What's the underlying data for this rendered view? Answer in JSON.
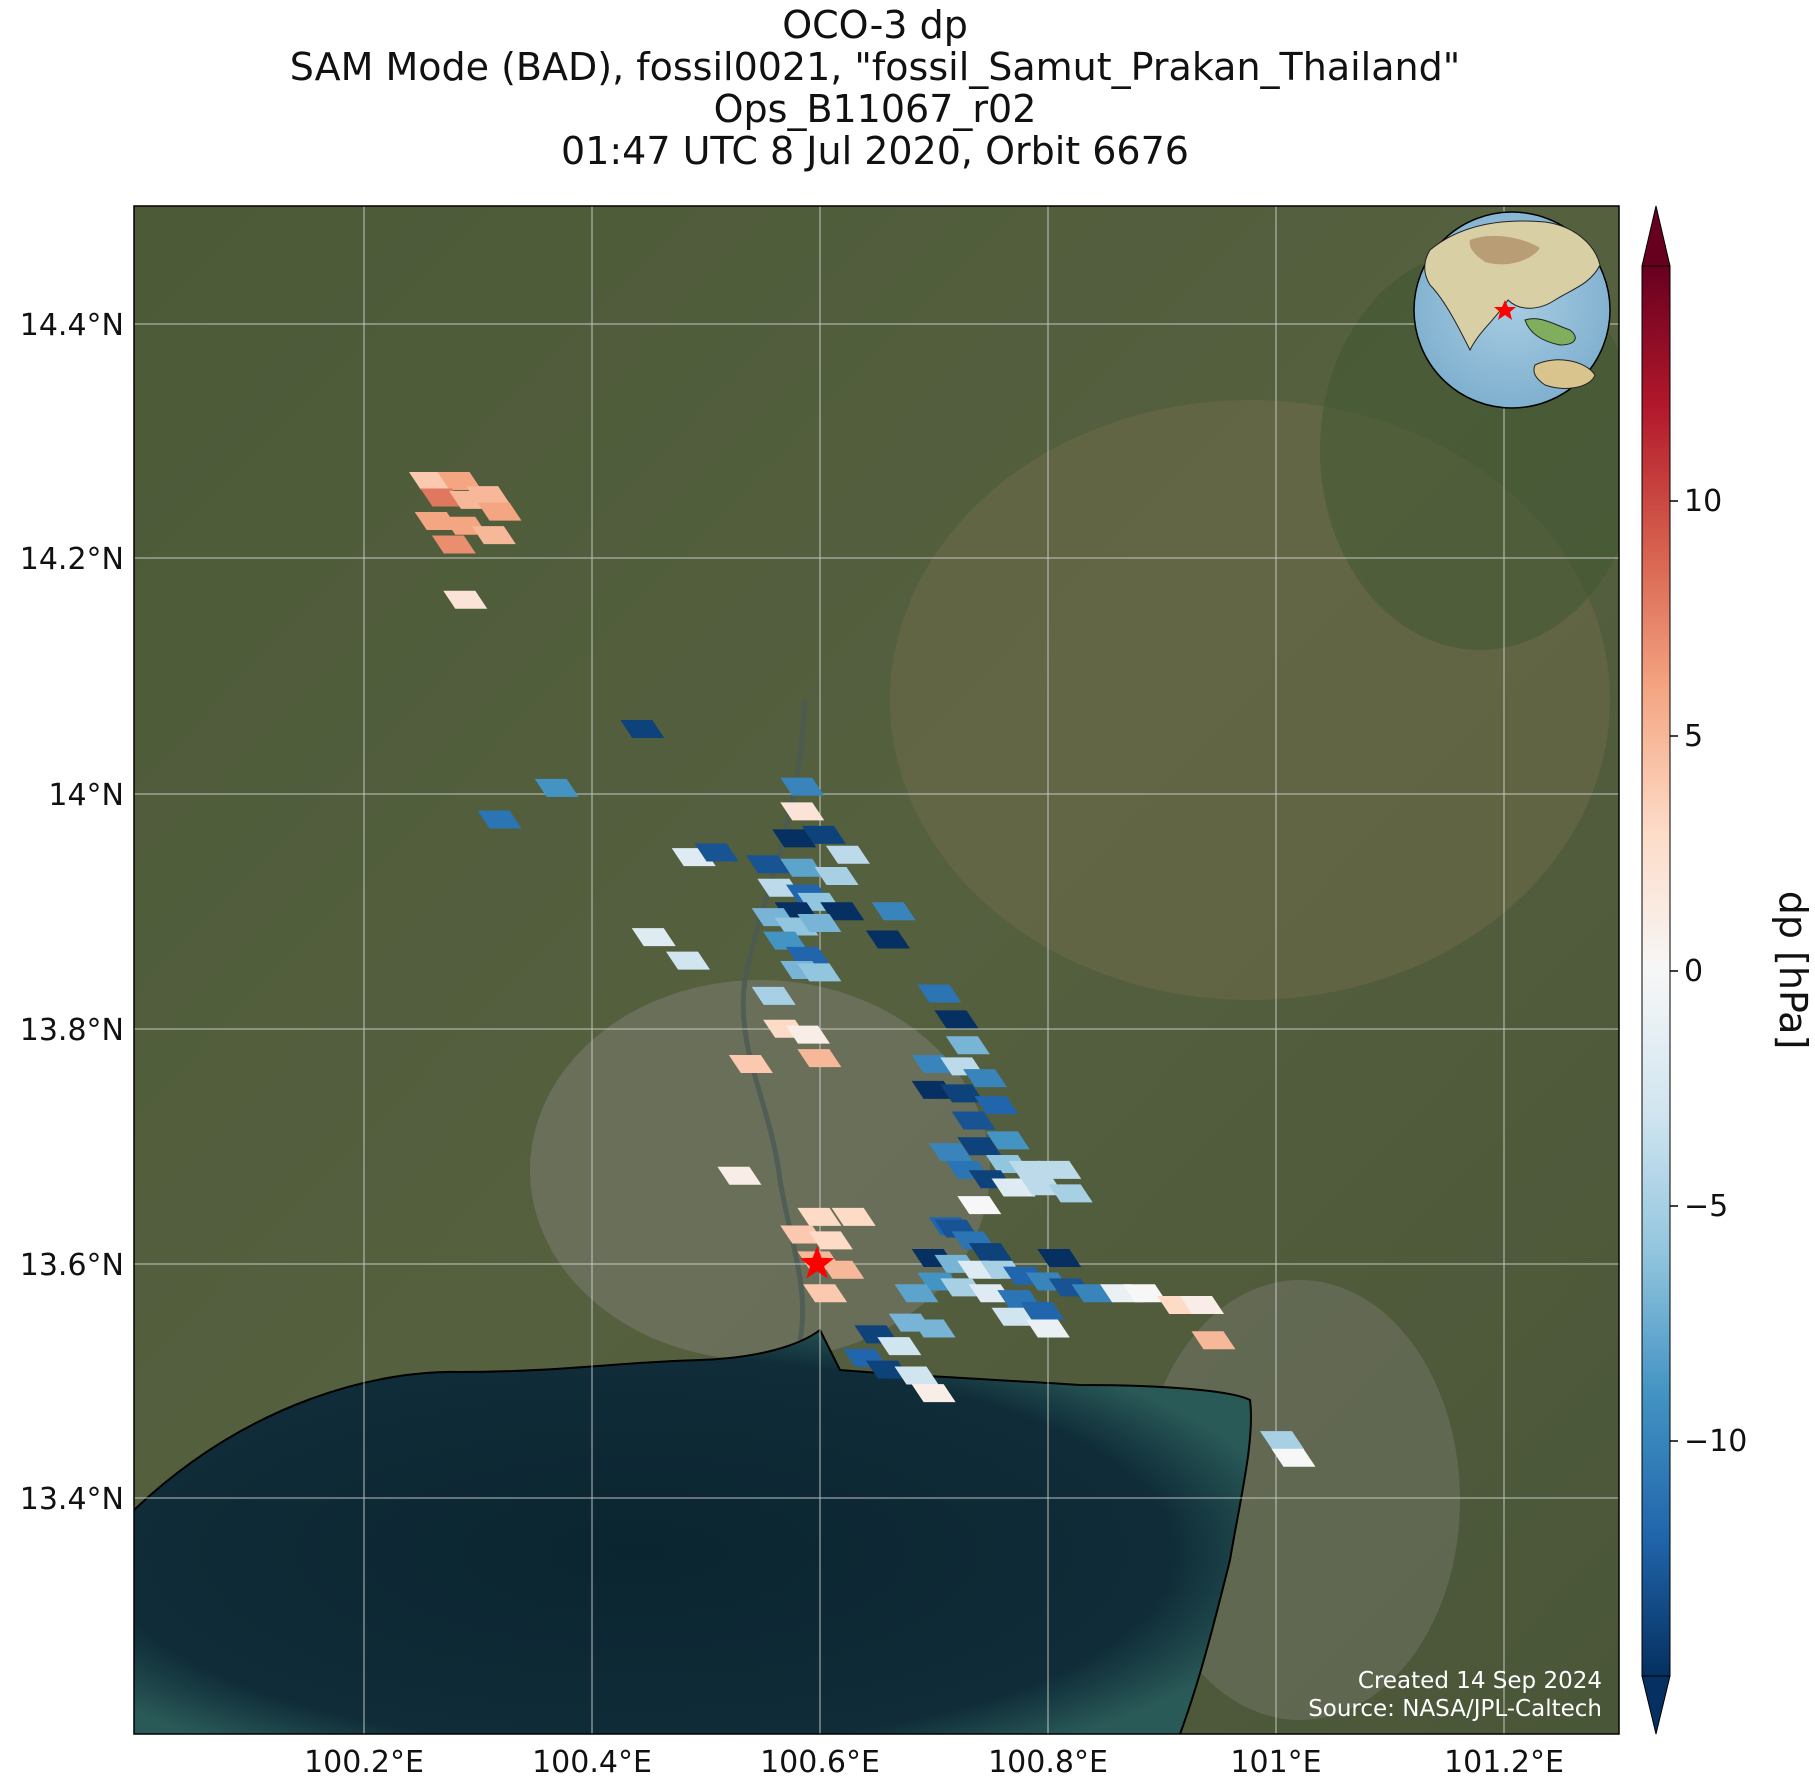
{
  "title": {
    "line1": "OCO-3 dp",
    "line2": "SAM Mode (BAD), fossil0021, \"fossil_Samut_Prakan_Thailand\"",
    "line3": "Ops_B11067_r02",
    "line4": "01:47 UTC 8 Jul 2020, Orbit 6676"
  },
  "credits": {
    "created": "Created 14 Sep 2024",
    "source": "Source: NASA/JPL-Caltech"
  },
  "colorbar": {
    "label": "dp [hPa]",
    "ticks": [
      "10",
      "5",
      "0",
      "−5",
      "−10"
    ],
    "tick_values": [
      10,
      5,
      0,
      -5,
      -10
    ],
    "vmin": -15,
    "vmax": 15,
    "colormap": "RdBu_r",
    "extend": "both"
  },
  "axes": {
    "lon_ticks": [
      "100.2°E",
      "100.4°E",
      "100.6°E",
      "100.8°E",
      "101°E",
      "101.2°E"
    ],
    "lon_values": [
      100.2,
      100.4,
      100.6,
      100.8,
      101.0,
      101.2
    ],
    "lat_ticks": [
      "14.4°N",
      "14.2°N",
      "14°N",
      "13.8°N",
      "13.6°N",
      "13.4°N"
    ],
    "lat_values": [
      14.4,
      14.2,
      14.0,
      13.8,
      13.6,
      13.4
    ],
    "lon_range": [
      100.0,
      101.3
    ],
    "lat_range": [
      13.2,
      14.5
    ],
    "grid": true
  },
  "target": {
    "name": "fossil_Samut_Prakan_Thailand",
    "lon": 100.598,
    "lat": 13.6,
    "marker": "red-star"
  },
  "inset_globe": {
    "marker": "red-star",
    "region": "Asia-Pacific"
  },
  "colors": {
    "sea": "#0e2a36",
    "land": "#4b5b3a",
    "gridline": "#d9d9d9",
    "star": "#ff0000"
  },
  "chart_data": {
    "type": "scatter",
    "variable": "dp",
    "units": "hPa",
    "points": [
      {
        "lon": 100.26,
        "lat": 14.266,
        "v": 4
      },
      {
        "lon": 100.285,
        "lat": 14.266,
        "v": 6
      },
      {
        "lon": 100.31,
        "lat": 14.254,
        "v": 5
      },
      {
        "lon": 100.27,
        "lat": 14.252,
        "v": 8
      },
      {
        "lon": 100.295,
        "lat": 14.25,
        "v": 5
      },
      {
        "lon": 100.32,
        "lat": 14.24,
        "v": 6
      },
      {
        "lon": 100.265,
        "lat": 14.232,
        "v": 6
      },
      {
        "lon": 100.29,
        "lat": 14.228,
        "v": 6
      },
      {
        "lon": 100.315,
        "lat": 14.22,
        "v": 5
      },
      {
        "lon": 100.28,
        "lat": 14.212,
        "v": 7
      },
      {
        "lon": 100.29,
        "lat": 14.165,
        "v": 2
      },
      {
        "lon": 100.445,
        "lat": 14.055,
        "v": -14
      },
      {
        "lon": 100.37,
        "lat": 14.005,
        "v": -9
      },
      {
        "lon": 100.32,
        "lat": 13.978,
        "v": -11
      },
      {
        "lon": 100.585,
        "lat": 14.006,
        "v": -10
      },
      {
        "lon": 100.585,
        "lat": 13.985,
        "v": 2
      },
      {
        "lon": 100.578,
        "lat": 13.962,
        "v": -15
      },
      {
        "lon": 100.604,
        "lat": 13.965,
        "v": -14
      },
      {
        "lon": 100.625,
        "lat": 13.948,
        "v": -4
      },
      {
        "lon": 100.49,
        "lat": 13.946,
        "v": -2
      },
      {
        "lon": 100.51,
        "lat": 13.95,
        "v": -13
      },
      {
        "lon": 100.555,
        "lat": 13.94,
        "v": -13
      },
      {
        "lon": 100.585,
        "lat": 13.937,
        "v": -8
      },
      {
        "lon": 100.615,
        "lat": 13.93,
        "v": -5
      },
      {
        "lon": 100.565,
        "lat": 13.92,
        "v": -4
      },
      {
        "lon": 100.59,
        "lat": 13.915,
        "v": -12
      },
      {
        "lon": 100.6,
        "lat": 13.908,
        "v": -6
      },
      {
        "lon": 100.62,
        "lat": 13.9,
        "v": -15
      },
      {
        "lon": 100.58,
        "lat": 13.9,
        "v": -15
      },
      {
        "lon": 100.56,
        "lat": 13.895,
        "v": -7
      },
      {
        "lon": 100.58,
        "lat": 13.887,
        "v": -6
      },
      {
        "lon": 100.6,
        "lat": 13.89,
        "v": -7
      },
      {
        "lon": 100.57,
        "lat": 13.875,
        "v": -9
      },
      {
        "lon": 100.59,
        "lat": 13.862,
        "v": -12
      },
      {
        "lon": 100.455,
        "lat": 13.878,
        "v": -2
      },
      {
        "lon": 100.485,
        "lat": 13.858,
        "v": -3
      },
      {
        "lon": 100.585,
        "lat": 13.85,
        "v": -7
      },
      {
        "lon": 100.6,
        "lat": 13.848,
        "v": -6
      },
      {
        "lon": 100.56,
        "lat": 13.828,
        "v": -5
      },
      {
        "lon": 100.57,
        "lat": 13.8,
        "v": 3
      },
      {
        "lon": 100.59,
        "lat": 13.795,
        "v": 1
      },
      {
        "lon": 100.6,
        "lat": 13.775,
        "v": 5
      },
      {
        "lon": 100.665,
        "lat": 13.9,
        "v": -10
      },
      {
        "lon": 100.66,
        "lat": 13.876,
        "v": -15
      },
      {
        "lon": 100.705,
        "lat": 13.83,
        "v": -11
      },
      {
        "lon": 100.72,
        "lat": 13.808,
        "v": -15
      },
      {
        "lon": 100.73,
        "lat": 13.786,
        "v": -7
      },
      {
        "lon": 100.7,
        "lat": 13.77,
        "v": -10
      },
      {
        "lon": 100.725,
        "lat": 13.768,
        "v": -4
      },
      {
        "lon": 100.745,
        "lat": 13.758,
        "v": -10
      },
      {
        "lon": 100.7,
        "lat": 13.748,
        "v": -15
      },
      {
        "lon": 100.725,
        "lat": 13.745,
        "v": -14
      },
      {
        "lon": 100.755,
        "lat": 13.735,
        "v": -12
      },
      {
        "lon": 100.735,
        "lat": 13.722,
        "v": -13
      },
      {
        "lon": 100.74,
        "lat": 13.7,
        "v": -14
      },
      {
        "lon": 100.765,
        "lat": 13.705,
        "v": -9
      },
      {
        "lon": 100.715,
        "lat": 13.695,
        "v": -10
      },
      {
        "lon": 100.765,
        "lat": 13.685,
        "v": -6
      },
      {
        "lon": 100.785,
        "lat": 13.68,
        "v": -4
      },
      {
        "lon": 100.73,
        "lat": 13.68,
        "v": -11
      },
      {
        "lon": 100.75,
        "lat": 13.672,
        "v": -14
      },
      {
        "lon": 100.77,
        "lat": 13.665,
        "v": -2
      },
      {
        "lon": 100.795,
        "lat": 13.666,
        "v": -4
      },
      {
        "lon": 100.81,
        "lat": 13.68,
        "v": -4
      },
      {
        "lon": 100.82,
        "lat": 13.66,
        "v": -5
      },
      {
        "lon": 100.74,
        "lat": 13.65,
        "v": 0
      },
      {
        "lon": 100.715,
        "lat": 13.632,
        "v": -12
      },
      {
        "lon": 100.54,
        "lat": 13.77,
        "v": 4
      },
      {
        "lon": 100.53,
        "lat": 13.675,
        "v": 1
      },
      {
        "lon": 100.6,
        "lat": 13.64,
        "v": 3
      },
      {
        "lon": 100.63,
        "lat": 13.64,
        "v": 3
      },
      {
        "lon": 100.585,
        "lat": 13.625,
        "v": 4
      },
      {
        "lon": 100.61,
        "lat": 13.62,
        "v": 3
      },
      {
        "lon": 100.6,
        "lat": 13.603,
        "v": 5
      },
      {
        "lon": 100.62,
        "lat": 13.595,
        "v": 5
      },
      {
        "lon": 100.605,
        "lat": 13.575,
        "v": 4
      },
      {
        "lon": 100.72,
        "lat": 13.63,
        "v": -13
      },
      {
        "lon": 100.735,
        "lat": 13.62,
        "v": -11
      },
      {
        "lon": 100.75,
        "lat": 13.61,
        "v": -14
      },
      {
        "lon": 100.7,
        "lat": 13.605,
        "v": -15
      },
      {
        "lon": 100.72,
        "lat": 13.6,
        "v": -7
      },
      {
        "lon": 100.74,
        "lat": 13.595,
        "v": -2
      },
      {
        "lon": 100.76,
        "lat": 13.595,
        "v": -5
      },
      {
        "lon": 100.78,
        "lat": 13.59,
        "v": -12
      },
      {
        "lon": 100.705,
        "lat": 13.585,
        "v": -9
      },
      {
        "lon": 100.725,
        "lat": 13.58,
        "v": -5
      },
      {
        "lon": 100.75,
        "lat": 13.575,
        "v": -2
      },
      {
        "lon": 100.775,
        "lat": 13.57,
        "v": -11
      },
      {
        "lon": 100.795,
        "lat": 13.56,
        "v": -12
      },
      {
        "lon": 100.685,
        "lat": 13.575,
        "v": -8
      },
      {
        "lon": 100.77,
        "lat": 13.555,
        "v": -3
      },
      {
        "lon": 100.8,
        "lat": 13.545,
        "v": -1
      },
      {
        "lon": 100.68,
        "lat": 13.55,
        "v": -7
      },
      {
        "lon": 100.7,
        "lat": 13.545,
        "v": -7
      },
      {
        "lon": 100.65,
        "lat": 13.54,
        "v": -14
      },
      {
        "lon": 100.67,
        "lat": 13.53,
        "v": -3
      },
      {
        "lon": 100.64,
        "lat": 13.52,
        "v": -12
      },
      {
        "lon": 100.66,
        "lat": 13.51,
        "v": -14
      },
      {
        "lon": 100.685,
        "lat": 13.505,
        "v": -3
      },
      {
        "lon": 100.7,
        "lat": 13.49,
        "v": 1
      },
      {
        "lon": 100.81,
        "lat": 13.605,
        "v": -15
      },
      {
        "lon": 100.8,
        "lat": 13.585,
        "v": -10
      },
      {
        "lon": 100.82,
        "lat": 13.58,
        "v": -13
      },
      {
        "lon": 100.84,
        "lat": 13.575,
        "v": -10
      },
      {
        "lon": 100.865,
        "lat": 13.575,
        "v": -1
      },
      {
        "lon": 100.885,
        "lat": 13.575,
        "v": 0
      },
      {
        "lon": 100.915,
        "lat": 13.565,
        "v": 3
      },
      {
        "lon": 100.935,
        "lat": 13.565,
        "v": 1
      },
      {
        "lon": 100.945,
        "lat": 13.535,
        "v": 5
      },
      {
        "lon": 101.005,
        "lat": 13.45,
        "v": -5
      },
      {
        "lon": 101.015,
        "lat": 13.435,
        "v": 0
      }
    ]
  }
}
